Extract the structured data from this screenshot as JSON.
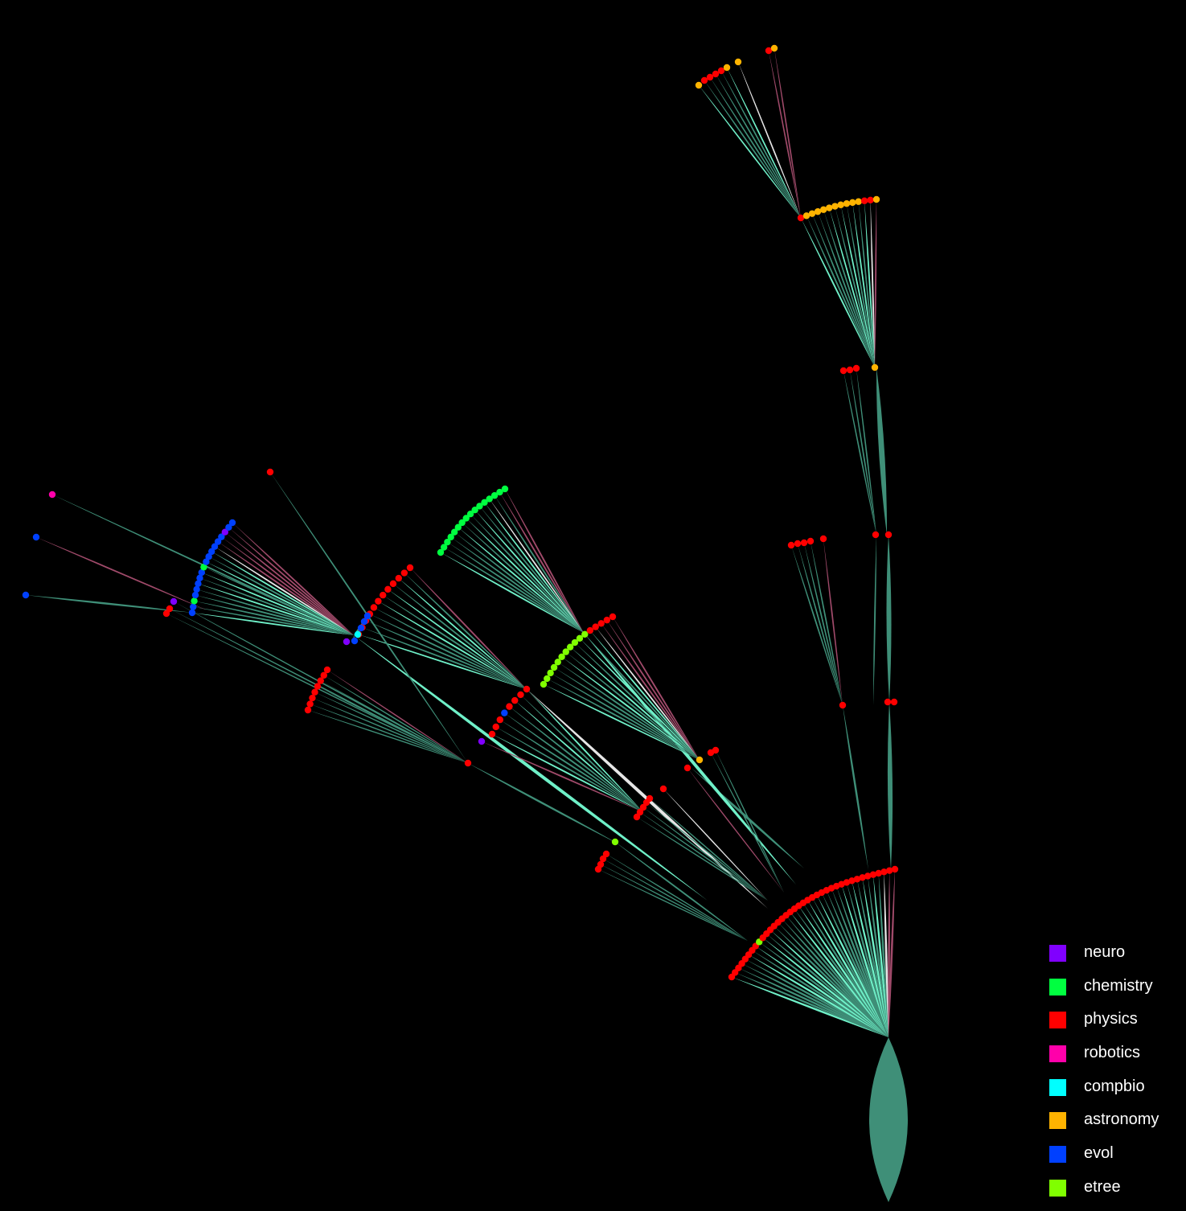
{
  "legend": [
    {
      "label": "neuro",
      "color": "#8000ff"
    },
    {
      "label": "chemistry",
      "color": "#00ff40"
    },
    {
      "label": "physics",
      "color": "#ff0000"
    },
    {
      "label": "robotics",
      "color": "#ff00aa"
    },
    {
      "label": "compbio",
      "color": "#00ffff"
    },
    {
      "label": "astronomy",
      "color": "#ffb300"
    },
    {
      "label": "evol",
      "color": "#0040ff"
    },
    {
      "label": "etree",
      "color": "#80ff00"
    }
  ],
  "edge_colors": {
    "default": "#3f8f78",
    "highlight": "#6ff0c8",
    "pink": "#a04a6a",
    "white": "#e6e6e6"
  }
}
